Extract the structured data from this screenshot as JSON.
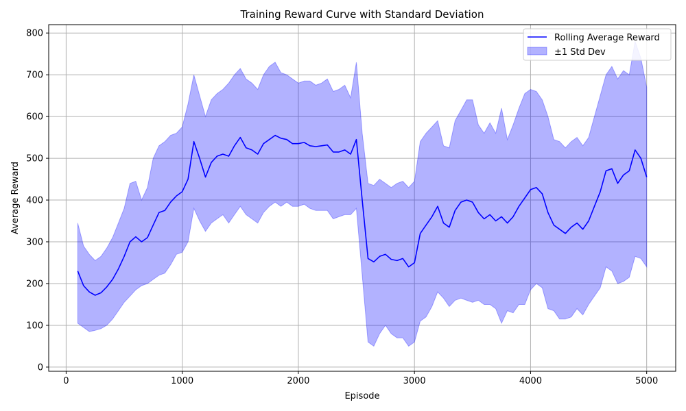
{
  "chart_data": {
    "type": "line",
    "title": "Training Reward Curve with Standard Deviation",
    "xlabel": "Episode",
    "ylabel": "Average Reward",
    "xlim": [
      -150,
      5250
    ],
    "ylim": [
      -10,
      820
    ],
    "xticks": [
      0,
      1000,
      2000,
      3000,
      4000,
      5000
    ],
    "yticks": [
      0,
      100,
      200,
      300,
      400,
      500,
      600,
      700,
      800
    ],
    "grid": true,
    "legend_position": "top-right",
    "colors": {
      "line": "#0000ff",
      "band": "#0000ff",
      "grid": "#b0b0b0"
    },
    "series": [
      {
        "name": "Rolling Average Reward",
        "kind": "line",
        "x": [
          100,
          150,
          200,
          250,
          300,
          350,
          400,
          450,
          500,
          550,
          600,
          650,
          700,
          750,
          800,
          850,
          900,
          950,
          1000,
          1050,
          1100,
          1150,
          1200,
          1250,
          1300,
          1350,
          1400,
          1450,
          1500,
          1550,
          1600,
          1650,
          1700,
          1750,
          1800,
          1850,
          1900,
          1950,
          2000,
          2050,
          2100,
          2150,
          2200,
          2250,
          2300,
          2350,
          2400,
          2450,
          2500,
          2550,
          2600,
          2650,
          2700,
          2750,
          2800,
          2850,
          2900,
          2950,
          3000,
          3050,
          3100,
          3150,
          3200,
          3250,
          3300,
          3350,
          3400,
          3450,
          3500,
          3550,
          3600,
          3650,
          3700,
          3750,
          3800,
          3850,
          3900,
          3950,
          4000,
          4050,
          4100,
          4150,
          4200,
          4250,
          4300,
          4350,
          4400,
          4450,
          4500,
          4550,
          4600,
          4650,
          4700,
          4750,
          4800,
          4850,
          4900,
          4950,
          5000
        ],
        "values": [
          230,
          195,
          180,
          172,
          178,
          192,
          210,
          235,
          265,
          300,
          312,
          300,
          310,
          340,
          370,
          375,
          395,
          410,
          420,
          450,
          540,
          500,
          455,
          490,
          505,
          510,
          505,
          530,
          550,
          525,
          520,
          510,
          535,
          545,
          555,
          548,
          545,
          535,
          535,
          538,
          530,
          528,
          530,
          532,
          515,
          515,
          520,
          510,
          545,
          400,
          260,
          252,
          265,
          270,
          258,
          255,
          260,
          240,
          250,
          320,
          340,
          360,
          385,
          345,
          335,
          375,
          395,
          400,
          395,
          370,
          355,
          365,
          350,
          360,
          345,
          360,
          385,
          405,
          425,
          430,
          415,
          370,
          340,
          330,
          320,
          335,
          345,
          330,
          350,
          385,
          420,
          470,
          475,
          440,
          460,
          470,
          520,
          500,
          455
        ]
      },
      {
        "name": "±1 Std Dev",
        "kind": "band",
        "x": [
          100,
          150,
          200,
          250,
          300,
          350,
          400,
          450,
          500,
          550,
          600,
          650,
          700,
          750,
          800,
          850,
          900,
          950,
          1000,
          1050,
          1100,
          1150,
          1200,
          1250,
          1300,
          1350,
          1400,
          1450,
          1500,
          1550,
          1600,
          1650,
          1700,
          1750,
          1800,
          1850,
          1900,
          1950,
          2000,
          2050,
          2100,
          2150,
          2200,
          2250,
          2300,
          2350,
          2400,
          2450,
          2500,
          2550,
          2600,
          2650,
          2700,
          2750,
          2800,
          2850,
          2900,
          2950,
          3000,
          3050,
          3100,
          3150,
          3200,
          3250,
          3300,
          3350,
          3400,
          3450,
          3500,
          3550,
          3600,
          3650,
          3700,
          3750,
          3800,
          3850,
          3900,
          3950,
          4000,
          4050,
          4100,
          4150,
          4200,
          4250,
          4300,
          4350,
          4400,
          4450,
          4500,
          4550,
          4600,
          4650,
          4700,
          4750,
          4800,
          4850,
          4900,
          4950,
          5000
        ],
        "upper": [
          345,
          290,
          270,
          255,
          265,
          285,
          310,
          345,
          380,
          440,
          445,
          400,
          430,
          500,
          530,
          540,
          555,
          560,
          575,
          630,
          700,
          650,
          600,
          640,
          655,
          665,
          680,
          700,
          715,
          690,
          680,
          665,
          700,
          720,
          730,
          705,
          700,
          690,
          680,
          685,
          685,
          675,
          680,
          690,
          660,
          665,
          675,
          645,
          730,
          560,
          440,
          435,
          450,
          440,
          430,
          440,
          445,
          430,
          445,
          540,
          560,
          575,
          590,
          530,
          525,
          590,
          615,
          640,
          640,
          580,
          560,
          585,
          560,
          620,
          545,
          580,
          620,
          655,
          665,
          660,
          640,
          600,
          545,
          540,
          525,
          540,
          550,
          530,
          550,
          600,
          650,
          700,
          720,
          690,
          710,
          700,
          780,
          740,
          670
        ],
        "lower": [
          105,
          95,
          85,
          88,
          92,
          100,
          115,
          135,
          155,
          170,
          185,
          195,
          200,
          210,
          220,
          225,
          245,
          270,
          275,
          300,
          380,
          350,
          325,
          345,
          355,
          365,
          345,
          365,
          385,
          365,
          355,
          345,
          370,
          385,
          395,
          385,
          395,
          385,
          385,
          390,
          380,
          375,
          375,
          375,
          355,
          360,
          365,
          365,
          380,
          220,
          60,
          50,
          80,
          100,
          80,
          70,
          70,
          50,
          60,
          110,
          120,
          145,
          180,
          165,
          145,
          160,
          165,
          160,
          155,
          160,
          150,
          150,
          140,
          105,
          135,
          130,
          150,
          150,
          185,
          200,
          190,
          140,
          135,
          115,
          115,
          120,
          140,
          125,
          150,
          170,
          190,
          240,
          230,
          200,
          205,
          215,
          265,
          260,
          240
        ]
      }
    ]
  }
}
